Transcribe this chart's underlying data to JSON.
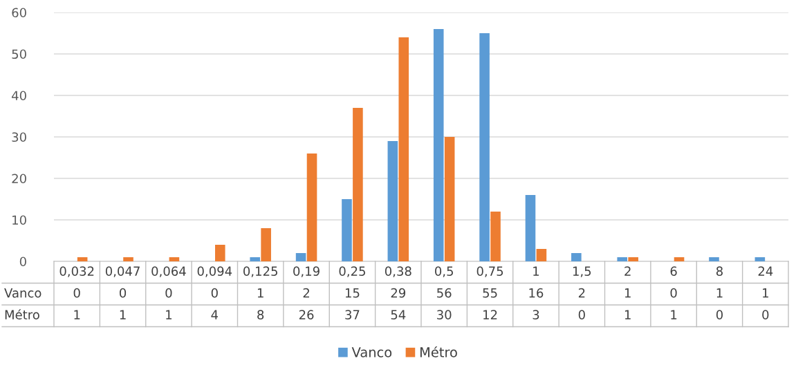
{
  "chart_data": {
    "type": "bar",
    "categories": [
      "0,032",
      "0,047",
      "0,064",
      "0,094",
      "0,125",
      "0,19",
      "0,25",
      "0,38",
      "0,5",
      "0,75",
      "1",
      "1,5",
      "2",
      "6",
      "8",
      "24"
    ],
    "series": [
      {
        "name": "Vanco",
        "color": "#5b9bd5",
        "values": [
          0,
          0,
          0,
          0,
          1,
          2,
          15,
          29,
          56,
          55,
          16,
          2,
          1,
          0,
          1,
          1
        ]
      },
      {
        "name": "Métro",
        "color": "#ed7d31",
        "values": [
          1,
          1,
          1,
          4,
          8,
          26,
          37,
          54,
          30,
          12,
          3,
          0,
          1,
          1,
          0,
          0
        ]
      }
    ],
    "ylim": [
      0,
      60
    ],
    "yticks": [
      0,
      10,
      20,
      30,
      40,
      50,
      60
    ],
    "grid": "y",
    "legend": "bottom",
    "data_labels": true
  }
}
